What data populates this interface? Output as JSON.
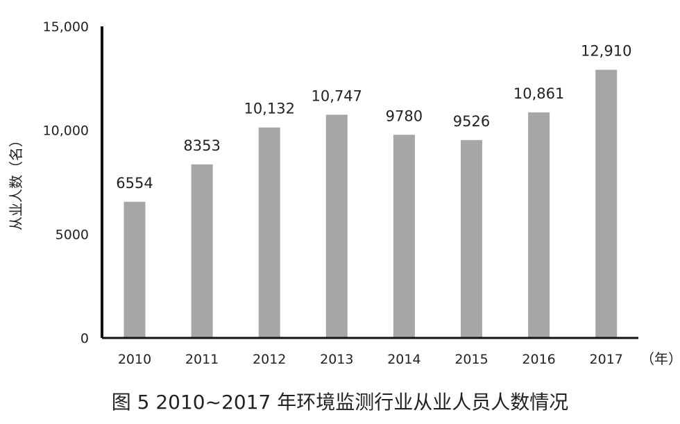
{
  "chart_data": {
    "type": "bar",
    "categories": [
      "2010",
      "2011",
      "2012",
      "2013",
      "2014",
      "2015",
      "2016",
      "2017"
    ],
    "values": [
      6554,
      8353,
      10132,
      10747,
      9780,
      9526,
      10861,
      12910
    ],
    "data_labels": [
      "6554",
      "8353",
      "10,132",
      "10,747",
      "9780",
      "9526",
      "10,861",
      "12,910"
    ],
    "ylabel": "从业人数（名）",
    "x_unit": "（年）",
    "ylim": [
      0,
      15000
    ],
    "yticks": [
      0,
      5000,
      10000,
      15000
    ],
    "ytick_labels": [
      "0",
      "5000",
      "10,000",
      "15,000"
    ],
    "bar_color": "#a6a6a6",
    "axis_color": "#111111",
    "grid": false,
    "legend": "none"
  },
  "caption": "图 5 2010~2017 年环境监测行业从业人员人数情况"
}
